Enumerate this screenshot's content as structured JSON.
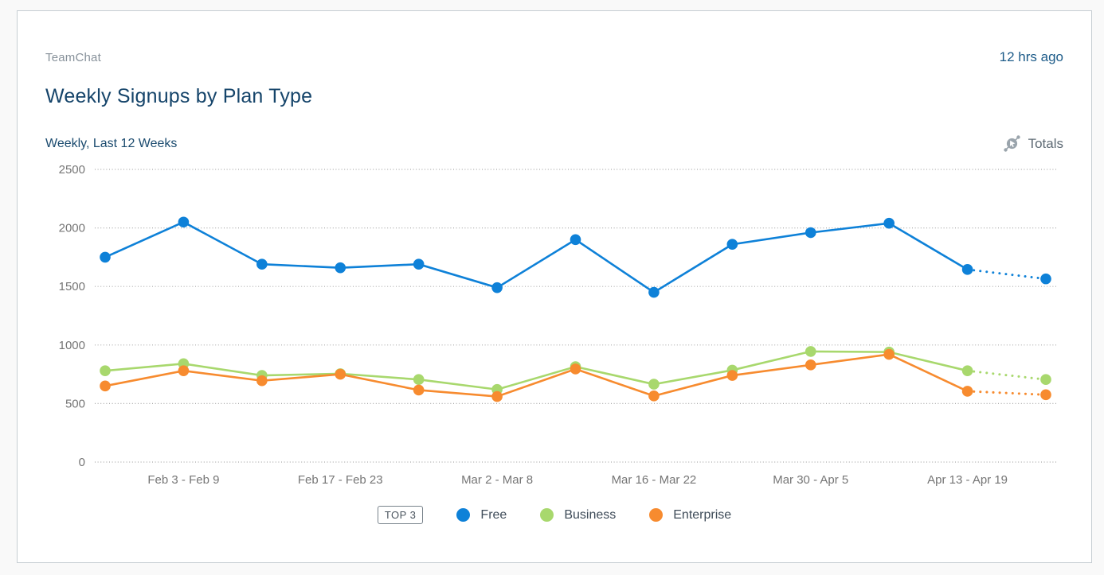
{
  "header": {
    "source": "TeamChat",
    "last_updated": "12 hrs ago",
    "title": "Weekly Signups by Plan Type",
    "subtitle": "Weekly, Last 12 Weeks",
    "totals_label": "Totals"
  },
  "legend": {
    "badge": "TOP 3"
  },
  "colors": {
    "accent_blue": "#0e81d8",
    "accent_green": "#a8d86d",
    "accent_orange": "#f78b2f",
    "grid": "#ababab",
    "axis_text": "#757575"
  },
  "chart_data": {
    "type": "line",
    "title": "Weekly Signups by Plan Type",
    "subtitle": "Weekly, Last 12 Weeks",
    "ylim": [
      0,
      2500
    ],
    "y_ticks": [
      0,
      500,
      1000,
      1500,
      2000,
      2500
    ],
    "grid": "dotted-horizontal",
    "legend_position": "bottom",
    "num_points": 13,
    "last_segment_projected_dotted": true,
    "x_tick_labels": [
      "Feb 3 - Feb 9",
      "Feb 17 - Feb 23",
      "Mar 2 - Mar 8",
      "Mar 16 - Mar 22",
      "Mar 30 - Apr 5",
      "Apr 13 - Apr 19"
    ],
    "x_tick_point_indices": [
      1,
      3,
      5,
      7,
      9,
      11
    ],
    "series": [
      {
        "name": "Free",
        "color": "#0e81d8",
        "values": [
          1750,
          2050,
          1690,
          1660,
          1690,
          1490,
          1900,
          1450,
          1860,
          1960,
          2040,
          1645,
          1565
        ]
      },
      {
        "name": "Business",
        "color": "#a8d86d",
        "values": [
          780,
          840,
          740,
          755,
          705,
          620,
          815,
          665,
          785,
          945,
          940,
          780,
          705
        ]
      },
      {
        "name": "Enterprise",
        "color": "#f78b2f",
        "values": [
          650,
          780,
          695,
          750,
          615,
          560,
          795,
          565,
          740,
          830,
          920,
          605,
          575
        ]
      }
    ]
  }
}
